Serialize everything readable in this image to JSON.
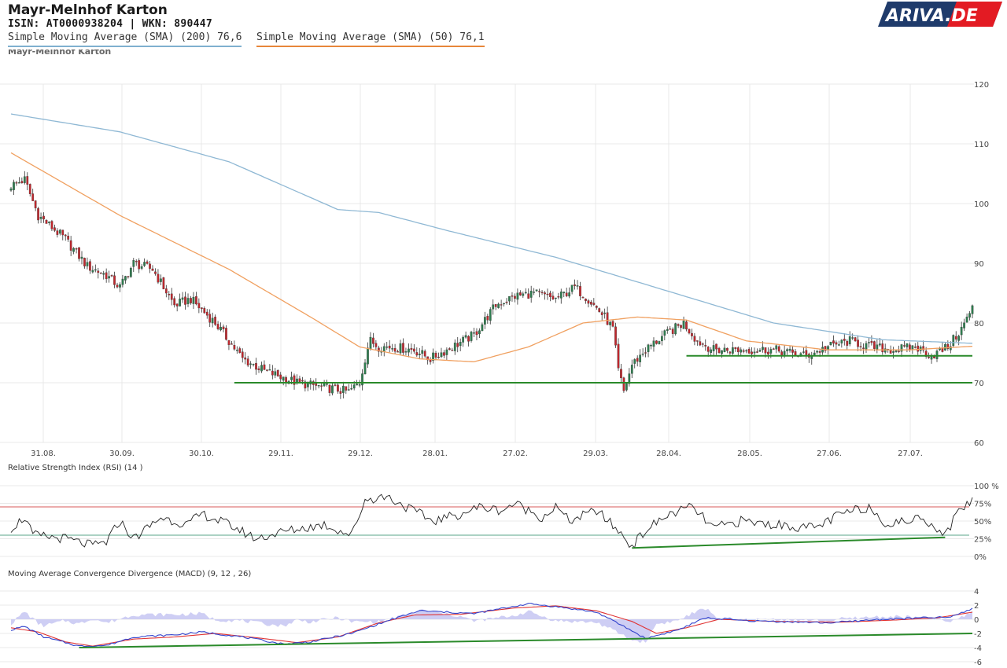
{
  "header": {
    "title": "Mayr-Melnhof Karton",
    "ids": "ISIN: AT0000938204  | WKN: 890447",
    "legend_sma200": "Simple Moving Average (SMA) (200) 76,6",
    "legend_sma50": "Simple Moving Average (SMA) (50) 76,1",
    "ghost_title": "Mayr-Melnhof Karton"
  },
  "logo": {
    "text": "ARIVA.DE",
    "colors": {
      "navy": "#1f3b6b",
      "red": "#e31b23"
    }
  },
  "colors": {
    "grid": "#e8e8e8",
    "up": "#2e7d4f",
    "down": "#c0272d",
    "sma200": "#8fb8d4",
    "sma50": "#f0a060",
    "support": "#2a8a2a",
    "rsi_line": "#222222",
    "rsi_upper": "#e07b7b",
    "rsi_lower": "#7ab8a0",
    "macd_line": "#3344cc",
    "macd_signal": "#e03333",
    "macd_hist": "#c9c9f3"
  },
  "chart_data": [
    {
      "type": "candlestick",
      "title": "",
      "x_ticks": [
        "31.08.",
        "30.09.",
        "30.10.",
        "29.11.",
        "29.12.",
        "28.01.",
        "27.02.",
        "29.03.",
        "28.04.",
        "28.05.",
        "27.06.",
        "27.07."
      ],
      "y_ticks": [
        "120",
        "110",
        "100",
        "90",
        "80",
        "70",
        "60"
      ],
      "ylim": [
        60,
        120
      ],
      "close_anchors": [
        [
          0,
          103
        ],
        [
          5,
          104
        ],
        [
          10,
          98
        ],
        [
          20,
          94
        ],
        [
          28,
          89.5
        ],
        [
          35,
          88
        ],
        [
          40,
          86
        ],
        [
          45,
          90
        ],
        [
          52,
          89
        ],
        [
          60,
          83
        ],
        [
          66,
          84
        ],
        [
          75,
          80
        ],
        [
          85,
          74
        ],
        [
          93,
          72
        ],
        [
          105,
          70
        ],
        [
          118,
          69
        ],
        [
          124,
          68.5
        ],
        [
          128,
          70
        ],
        [
          131,
          76
        ],
        [
          132,
          77
        ],
        [
          135,
          76
        ],
        [
          140,
          76
        ],
        [
          148,
          75.5
        ],
        [
          154,
          74
        ],
        [
          162,
          76
        ],
        [
          170,
          78
        ],
        [
          178,
          83
        ],
        [
          185,
          84.5
        ],
        [
          192,
          85
        ],
        [
          200,
          84
        ],
        [
          207,
          86
        ],
        [
          212,
          84
        ],
        [
          218,
          81
        ],
        [
          221,
          79
        ],
        [
          223,
          72
        ],
        [
          225,
          68.5
        ],
        [
          228,
          73
        ],
        [
          233,
          75.5
        ],
        [
          240,
          78
        ],
        [
          247,
          80
        ],
        [
          252,
          77
        ],
        [
          258,
          75.5
        ],
        [
          268,
          75.5
        ],
        [
          280,
          75.5
        ],
        [
          292,
          74.5
        ],
        [
          300,
          76
        ],
        [
          308,
          77
        ],
        [
          316,
          76
        ],
        [
          324,
          75.5
        ],
        [
          332,
          76
        ],
        [
          338,
          74.5
        ],
        [
          344,
          76
        ],
        [
          349,
          79
        ],
        [
          353,
          82.5
        ]
      ],
      "sma200_anchors": [
        [
          0,
          115
        ],
        [
          40,
          112
        ],
        [
          80,
          107
        ],
        [
          120,
          99
        ],
        [
          135,
          98.5
        ],
        [
          160,
          95.5
        ],
        [
          200,
          91
        ],
        [
          240,
          85.5
        ],
        [
          280,
          80
        ],
        [
          320,
          77.2
        ],
        [
          353,
          76.6
        ]
      ],
      "sma50_anchors": [
        [
          0,
          108.5
        ],
        [
          40,
          98
        ],
        [
          80,
          89
        ],
        [
          110,
          81
        ],
        [
          128,
          76
        ],
        [
          150,
          74
        ],
        [
          170,
          73.5
        ],
        [
          190,
          76
        ],
        [
          210,
          80
        ],
        [
          230,
          81
        ],
        [
          248,
          80.5
        ],
        [
          270,
          77
        ],
        [
          300,
          75.5
        ],
        [
          330,
          75.5
        ],
        [
          353,
          76.1
        ]
      ],
      "support_lines": [
        {
          "from_index": 82,
          "to_index": 353,
          "value": 70
        },
        {
          "from_index": 248,
          "to_index": 353,
          "value": 74.5
        }
      ]
    },
    {
      "type": "line",
      "title": "Relative Strength Index (RSI) (14 )",
      "y_ticks": [
        "100 %",
        "75%",
        "50%",
        "25%",
        "0%"
      ],
      "ylim": [
        0,
        100
      ],
      "bands": [
        70,
        30
      ],
      "rsi_anchors": [
        [
          0,
          40
        ],
        [
          5,
          55
        ],
        [
          8,
          30
        ],
        [
          20,
          25
        ],
        [
          30,
          15
        ],
        [
          35,
          20
        ],
        [
          40,
          50
        ],
        [
          45,
          25
        ],
        [
          55,
          55
        ],
        [
          65,
          45
        ],
        [
          70,
          60
        ],
        [
          80,
          45
        ],
        [
          90,
          25
        ],
        [
          100,
          35
        ],
        [
          115,
          45
        ],
        [
          125,
          30
        ],
        [
          130,
          80
        ],
        [
          138,
          85
        ],
        [
          145,
          70
        ],
        [
          155,
          50
        ],
        [
          165,
          60
        ],
        [
          172,
          70
        ],
        [
          180,
          65
        ],
        [
          185,
          75
        ],
        [
          195,
          55
        ],
        [
          200,
          70
        ],
        [
          205,
          50
        ],
        [
          215,
          65
        ],
        [
          222,
          40
        ],
        [
          228,
          15
        ],
        [
          234,
          40
        ],
        [
          242,
          60
        ],
        [
          250,
          70
        ],
        [
          258,
          40
        ],
        [
          268,
          50
        ],
        [
          280,
          45
        ],
        [
          295,
          40
        ],
        [
          305,
          60
        ],
        [
          315,
          70
        ],
        [
          322,
          45
        ],
        [
          335,
          55
        ],
        [
          343,
          30
        ],
        [
          348,
          65
        ],
        [
          353,
          80
        ]
      ],
      "divergence_line": {
        "from": [
          228,
          12
        ],
        "to": [
          343,
          27
        ]
      }
    },
    {
      "type": "line",
      "title": "Moving Average Convergence Divergence (MACD) (9, 12 , 26)",
      "y_ticks": [
        "4",
        "2",
        "0",
        "-2",
        "-4",
        "-6"
      ],
      "ylim": [
        -6,
        4
      ],
      "macd_anchors": [
        [
          0,
          -1.5
        ],
        [
          5,
          -1
        ],
        [
          12,
          -2.5
        ],
        [
          25,
          -3.8
        ],
        [
          35,
          -3.7
        ],
        [
          45,
          -2.5
        ],
        [
          60,
          -2.2
        ],
        [
          70,
          -1.8
        ],
        [
          85,
          -2.5
        ],
        [
          100,
          -3.5
        ],
        [
          110,
          -3.2
        ],
        [
          125,
          -2
        ],
        [
          140,
          0
        ],
        [
          150,
          1.2
        ],
        [
          170,
          0.8
        ],
        [
          190,
          2.2
        ],
        [
          200,
          1.8
        ],
        [
          215,
          1
        ],
        [
          225,
          -1
        ],
        [
          233,
          -2.7
        ],
        [
          245,
          -1.5
        ],
        [
          255,
          0.2
        ],
        [
          270,
          -0.2
        ],
        [
          300,
          -0.5
        ],
        [
          320,
          0
        ],
        [
          335,
          0.2
        ],
        [
          345,
          0.3
        ],
        [
          353,
          1.5
        ]
      ],
      "signal_anchors": [
        [
          0,
          -1.2
        ],
        [
          10,
          -1.8
        ],
        [
          20,
          -3.2
        ],
        [
          30,
          -3.8
        ],
        [
          45,
          -2.8
        ],
        [
          60,
          -2.5
        ],
        [
          75,
          -2
        ],
        [
          90,
          -2.6
        ],
        [
          105,
          -3.3
        ],
        [
          120,
          -2.5
        ],
        [
          135,
          -0.5
        ],
        [
          148,
          0.6
        ],
        [
          165,
          0.7
        ],
        [
          185,
          1.6
        ],
        [
          200,
          1.9
        ],
        [
          215,
          1.2
        ],
        [
          228,
          -0.3
        ],
        [
          237,
          -2
        ],
        [
          248,
          -1.2
        ],
        [
          260,
          0
        ],
        [
          280,
          -0.3
        ],
        [
          305,
          -0.4
        ],
        [
          325,
          -0.1
        ],
        [
          340,
          0.2
        ],
        [
          353,
          1
        ]
      ],
      "divergence_line": {
        "from": [
          25,
          -4
        ],
        "to": [
          353,
          -2
        ]
      }
    }
  ]
}
